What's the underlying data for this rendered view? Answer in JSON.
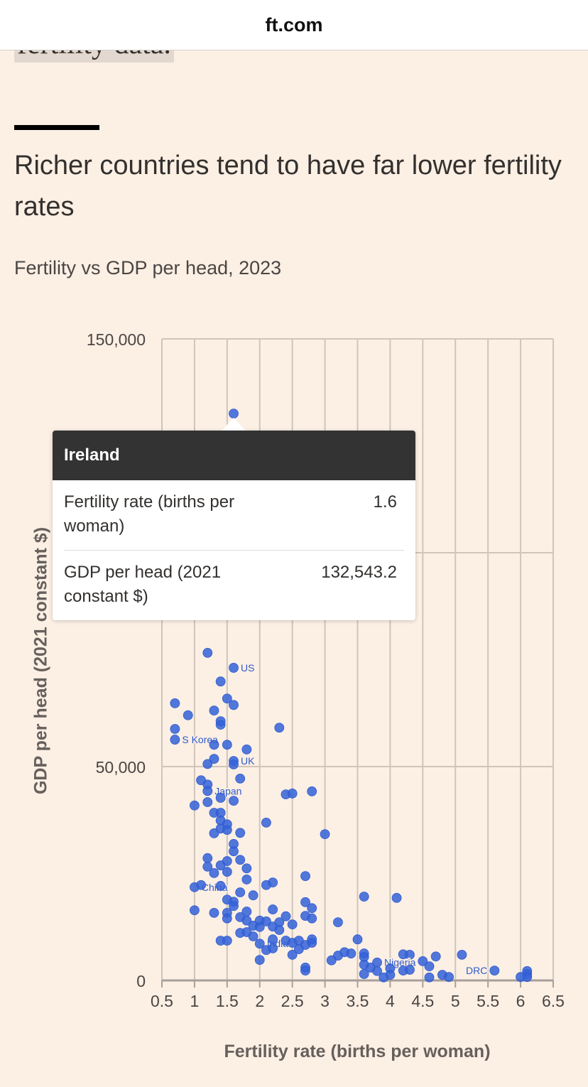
{
  "browser": {
    "domain": "ft.com"
  },
  "previous_text": "fertility data.",
  "article": {
    "title": "Richer countries tend to have far lower fertility rates",
    "subtitle": "Fertility vs GDP per head, 2023"
  },
  "tooltip": {
    "country": "Ireland",
    "rows": [
      {
        "label": "Fertility rate (births per woman)",
        "value": "1.6"
      },
      {
        "label": "GDP per head (2021 constant $)",
        "value": "132,543.2"
      }
    ]
  },
  "chart_data": {
    "type": "scatter",
    "title": "Fertility vs GDP per head, 2023",
    "xlabel": "Fertility rate (births per woman)",
    "ylabel": "GDP per head (2021 constant $)",
    "xlim": [
      0.5,
      6.5
    ],
    "ylim": [
      0,
      150000
    ],
    "x_ticks": [
      "0.5",
      "1",
      "1.5",
      "2",
      "2.5",
      "3",
      "3.5",
      "4",
      "4.5",
      "5",
      "5.5",
      "6",
      "6.5"
    ],
    "y_ticks": [
      {
        "value": 0,
        "label": "0"
      },
      {
        "value": 50000,
        "label": "50,000"
      },
      {
        "value": 100000,
        "label": ""
      },
      {
        "value": 150000,
        "label": "150,000"
      }
    ],
    "grid": true,
    "color": "#3462d8",
    "highlighted": "Ireland",
    "points": [
      {
        "x": 1.6,
        "y": 132543,
        "name": "Ireland"
      },
      {
        "x": 1.2,
        "y": 76600
      },
      {
        "x": 1.6,
        "y": 73100,
        "label": "US"
      },
      {
        "x": 1.4,
        "y": 69900
      },
      {
        "x": 1.5,
        "y": 65900
      },
      {
        "x": 0.7,
        "y": 64800
      },
      {
        "x": 1.3,
        "y": 63100
      },
      {
        "x": 1.6,
        "y": 64400
      },
      {
        "x": 0.9,
        "y": 62000
      },
      {
        "x": 1.4,
        "y": 59800
      },
      {
        "x": 1.4,
        "y": 60600
      },
      {
        "x": 0.7,
        "y": 58800
      },
      {
        "x": 2.3,
        "y": 59100
      },
      {
        "x": 0.7,
        "y": 56300,
        "label": "S Korea"
      },
      {
        "x": 1.3,
        "y": 55100
      },
      {
        "x": 1.5,
        "y": 55100
      },
      {
        "x": 1.8,
        "y": 54000
      },
      {
        "x": 1.3,
        "y": 51800
      },
      {
        "x": 1.2,
        "y": 50600
      },
      {
        "x": 1.6,
        "y": 51300,
        "label": "UK"
      },
      {
        "x": 1.6,
        "y": 50500
      },
      {
        "x": 1.7,
        "y": 47200
      },
      {
        "x": 1.1,
        "y": 46800
      },
      {
        "x": 1.2,
        "y": 45800
      },
      {
        "x": 1.2,
        "y": 44300,
        "label": "Japan"
      },
      {
        "x": 1.4,
        "y": 42700
      },
      {
        "x": 1.6,
        "y": 42000
      },
      {
        "x": 1.0,
        "y": 40900
      },
      {
        "x": 1.2,
        "y": 41700
      },
      {
        "x": 1.3,
        "y": 39200
      },
      {
        "x": 1.4,
        "y": 39200
      },
      {
        "x": 2.4,
        "y": 43500
      },
      {
        "x": 2.5,
        "y": 43700
      },
      {
        "x": 2.8,
        "y": 44200
      },
      {
        "x": 1.4,
        "y": 37400
      },
      {
        "x": 2.1,
        "y": 36900
      },
      {
        "x": 1.5,
        "y": 36500
      },
      {
        "x": 1.3,
        "y": 34400
      },
      {
        "x": 1.4,
        "y": 35500
      },
      {
        "x": 1.5,
        "y": 35200
      },
      {
        "x": 1.7,
        "y": 34500
      },
      {
        "x": 3.0,
        "y": 34200
      },
      {
        "x": 1.6,
        "y": 31900
      },
      {
        "x": 1.6,
        "y": 30200
      },
      {
        "x": 1.2,
        "y": 28600
      },
      {
        "x": 1.2,
        "y": 26600
      },
      {
        "x": 1.5,
        "y": 27900
      },
      {
        "x": 1.7,
        "y": 28200
      },
      {
        "x": 1.8,
        "y": 26200
      },
      {
        "x": 1.4,
        "y": 26900
      },
      {
        "x": 1.3,
        "y": 25100
      },
      {
        "x": 1.5,
        "y": 25400
      },
      {
        "x": 2.7,
        "y": 24400
      },
      {
        "x": 1.8,
        "y": 23600
      },
      {
        "x": 2.2,
        "y": 22900
      },
      {
        "x": 2.1,
        "y": 22300
      },
      {
        "x": 1.0,
        "y": 21800,
        "label": "China"
      },
      {
        "x": 1.1,
        "y": 22300
      },
      {
        "x": 1.4,
        "y": 22100
      },
      {
        "x": 1.7,
        "y": 20600
      },
      {
        "x": 1.9,
        "y": 19900
      },
      {
        "x": 3.6,
        "y": 19600
      },
      {
        "x": 4.1,
        "y": 19300
      },
      {
        "x": 1.5,
        "y": 18900
      },
      {
        "x": 1.6,
        "y": 18400
      },
      {
        "x": 1.6,
        "y": 17400
      },
      {
        "x": 2.7,
        "y": 18300
      },
      {
        "x": 2.8,
        "y": 16900
      },
      {
        "x": 1.0,
        "y": 16400
      },
      {
        "x": 1.3,
        "y": 15800
      },
      {
        "x": 1.5,
        "y": 15800
      },
      {
        "x": 1.5,
        "y": 14500
      },
      {
        "x": 1.8,
        "y": 16100
      },
      {
        "x": 2.2,
        "y": 16600
      },
      {
        "x": 1.7,
        "y": 14800
      },
      {
        "x": 1.8,
        "y": 14000
      },
      {
        "x": 2.0,
        "y": 14000
      },
      {
        "x": 2.1,
        "y": 13800
      },
      {
        "x": 2.4,
        "y": 15000
      },
      {
        "x": 2.7,
        "y": 15100
      },
      {
        "x": 2.8,
        "y": 14500
      },
      {
        "x": 3.2,
        "y": 13600
      },
      {
        "x": 1.9,
        "y": 12800
      },
      {
        "x": 2.2,
        "y": 12600
      },
      {
        "x": 2.3,
        "y": 13600
      },
      {
        "x": 2.0,
        "y": 12500
      },
      {
        "x": 1.7,
        "y": 11100
      },
      {
        "x": 1.8,
        "y": 11300
      },
      {
        "x": 2.3,
        "y": 11800
      },
      {
        "x": 2.5,
        "y": 13100
      },
      {
        "x": 3.5,
        "y": 9600
      },
      {
        "x": 1.4,
        "y": 9300
      },
      {
        "x": 1.5,
        "y": 9300
      },
      {
        "x": 1.9,
        "y": 10300
      },
      {
        "x": 2.0,
        "y": 8600,
        "label": "India"
      },
      {
        "x": 2.2,
        "y": 9600
      },
      {
        "x": 2.4,
        "y": 9300
      },
      {
        "x": 2.5,
        "y": 8800
      },
      {
        "x": 2.6,
        "y": 9300
      },
      {
        "x": 2.8,
        "y": 9600
      },
      {
        "x": 2.8,
        "y": 8800
      },
      {
        "x": 2.1,
        "y": 7100
      },
      {
        "x": 2.2,
        "y": 7500
      },
      {
        "x": 2.7,
        "y": 8300
      },
      {
        "x": 2.5,
        "y": 6000
      },
      {
        "x": 2.6,
        "y": 7300
      },
      {
        "x": 3.2,
        "y": 5800
      },
      {
        "x": 3.1,
        "y": 4700
      },
      {
        "x": 3.3,
        "y": 6600
      },
      {
        "x": 3.4,
        "y": 6300
      },
      {
        "x": 3.6,
        "y": 6300
      },
      {
        "x": 3.6,
        "y": 5500
      },
      {
        "x": 3.6,
        "y": 3700
      },
      {
        "x": 2.0,
        "y": 4800
      },
      {
        "x": 2.7,
        "y": 3000
      },
      {
        "x": 2.7,
        "y": 2300
      },
      {
        "x": 4.2,
        "y": 6100
      },
      {
        "x": 4.3,
        "y": 6000
      },
      {
        "x": 5.1,
        "y": 6000
      },
      {
        "x": 4.7,
        "y": 5600
      },
      {
        "x": 4.5,
        "y": 4500
      },
      {
        "x": 4.6,
        "y": 3300
      },
      {
        "x": 3.8,
        "y": 4200,
        "label": "Nigeria"
      },
      {
        "x": 3.7,
        "y": 3000
      },
      {
        "x": 3.8,
        "y": 2200
      },
      {
        "x": 4.0,
        "y": 2800
      },
      {
        "x": 4.0,
        "y": 1300
      },
      {
        "x": 4.2,
        "y": 2300
      },
      {
        "x": 4.3,
        "y": 2500
      },
      {
        "x": 3.6,
        "y": 1500
      },
      {
        "x": 3.9,
        "y": 700
      },
      {
        "x": 4.6,
        "y": 700
      },
      {
        "x": 4.8,
        "y": 1300
      },
      {
        "x": 4.9,
        "y": 800
      },
      {
        "x": 5.6,
        "y": 2300,
        "label": "DRC"
      },
      {
        "x": 6.1,
        "y": 2200
      },
      {
        "x": 6.1,
        "y": 1500
      },
      {
        "x": 6.1,
        "y": 800
      },
      {
        "x": 6.0,
        "y": 800
      }
    ]
  }
}
